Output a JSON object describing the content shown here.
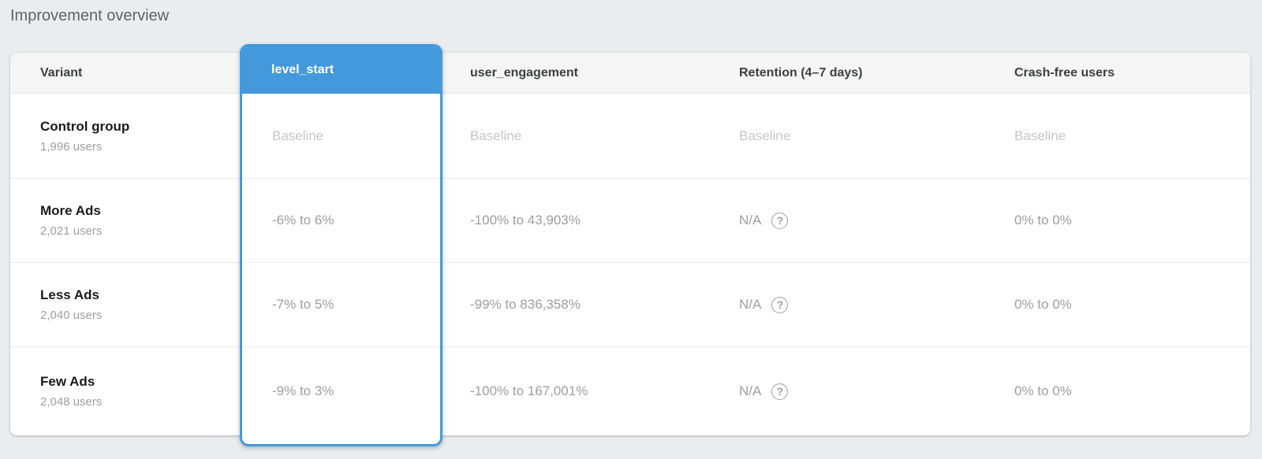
{
  "page": {
    "title": "Improvement overview"
  },
  "colors": {
    "accent_blue": "#4499dc",
    "page_background": "#eaedef",
    "header_row_background": "#f4f5f5",
    "value_gray": "#9b9ea3",
    "baseline_gray": "#c3c6ca"
  },
  "table": {
    "selected_metric": "level_start",
    "columns": {
      "variant": "Variant",
      "level_start": "level_start",
      "user_engagement": "user_engagement",
      "retention": "Retention (4–7 days)",
      "crash_free": "Crash-free users"
    },
    "rows": [
      {
        "variant": "Control group",
        "users": "1,996 users",
        "level_start": "Baseline",
        "user_engagement": "Baseline",
        "retention": "Baseline",
        "crash_free": "Baseline"
      },
      {
        "variant": "More Ads",
        "users": "2,021 users",
        "level_start": "-6% to 6%",
        "user_engagement": "-100% to 43,903%",
        "retention": "N/A",
        "crash_free": "0% to 0%"
      },
      {
        "variant": "Less Ads",
        "users": "2,040 users",
        "level_start": "-7% to 5%",
        "user_engagement": "-99% to 836,358%",
        "retention": "N/A",
        "crash_free": "0% to 0%"
      },
      {
        "variant": "Few Ads",
        "users": "2,048 users",
        "level_start": "-9% to 3%",
        "user_engagement": "-100% to 167,001%",
        "retention": "N/A",
        "crash_free": "0% to 0%"
      }
    ]
  },
  "icons": {
    "help_glyph": "?"
  }
}
